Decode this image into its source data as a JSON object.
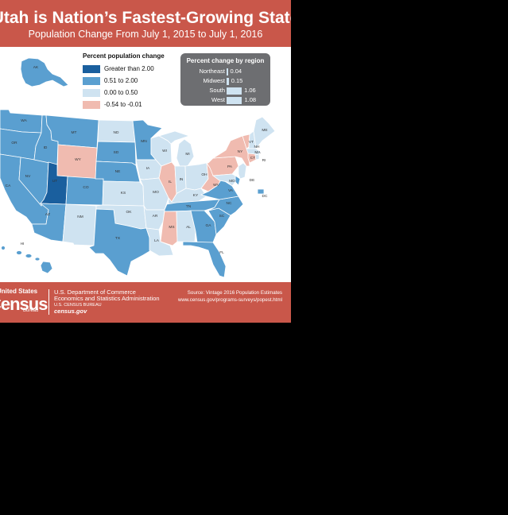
{
  "header": {
    "title": "Utah is Nation’s Fastest-Growing State",
    "subtitle": "Population Change From July 1, 2015 to July 1, 2016"
  },
  "legend": {
    "title": "Percent population change",
    "items": [
      {
        "label": "Greater than 2.00",
        "color": "#1a5f9e"
      },
      {
        "label": "0.51 to 2.00",
        "color": "#5a9fd0"
      },
      {
        "label": "0.00 to 0.50",
        "color": "#cfe3f1"
      },
      {
        "label": "-0.54 to -0.01",
        "color": "#f0bbb0"
      }
    ]
  },
  "region_box": {
    "title": "Percent change by region",
    "rows": [
      {
        "name": "Northeast",
        "value": "0.04",
        "v": 0.04
      },
      {
        "name": "Midwest",
        "value": "0.15",
        "v": 0.15
      },
      {
        "name": "South",
        "value": "1.06",
        "v": 1.06
      },
      {
        "name": "West",
        "value": "1.08",
        "v": 1.08
      }
    ]
  },
  "colors": {
    "header_red": "#c9574a",
    "class_high": "#1a5f9e",
    "class_mid": "#5a9fd0",
    "class_low": "#cfe3f1",
    "class_neg": "#f0bbb0"
  },
  "states": {
    "AK": "mid",
    "HI": "mid",
    "WA": "mid",
    "OR": "mid",
    "CA": "mid",
    "NV": "mid",
    "ID": "mid",
    "MT": "mid",
    "WY": "neg",
    "UT": "high",
    "CO": "mid",
    "AZ": "mid",
    "NM": "low",
    "ND": "low",
    "SD": "mid",
    "NE": "mid",
    "KS": "low",
    "OK": "low",
    "TX": "mid",
    "MN": "mid",
    "IA": "low",
    "MO": "low",
    "AR": "low",
    "LA": "low",
    "WI": "low",
    "IL": "neg",
    "MI": "low",
    "IN": "low",
    "OH": "low",
    "KY": "low",
    "TN": "mid",
    "MS": "neg",
    "AL": "low",
    "GA": "mid",
    "FL": "mid",
    "SC": "mid",
    "NC": "mid",
    "VA": "mid",
    "WV": "neg",
    "PA": "neg",
    "NY": "neg",
    "VT": "neg",
    "NH": "low",
    "ME": "low",
    "MA": "low",
    "CT": "neg",
    "RI": "low",
    "NJ": "low",
    "DE": "mid",
    "MD": "low",
    "DC": "mid"
  },
  "footer": {
    "logo_top": "United States",
    "logo_main": "Census",
    "logo_bottom": "Bureau",
    "dept_line1": "U.S. Department of Commerce",
    "dept_line2": "Economics and Statistics Administration",
    "dept_line3": "U.S. CENSUS BUREAU",
    "dept_line4": "census.gov",
    "source_line1": "Source: Vintage 2016 Population Estimates",
    "source_line2": "www.census.gov/programs-surveys/popest.html"
  }
}
